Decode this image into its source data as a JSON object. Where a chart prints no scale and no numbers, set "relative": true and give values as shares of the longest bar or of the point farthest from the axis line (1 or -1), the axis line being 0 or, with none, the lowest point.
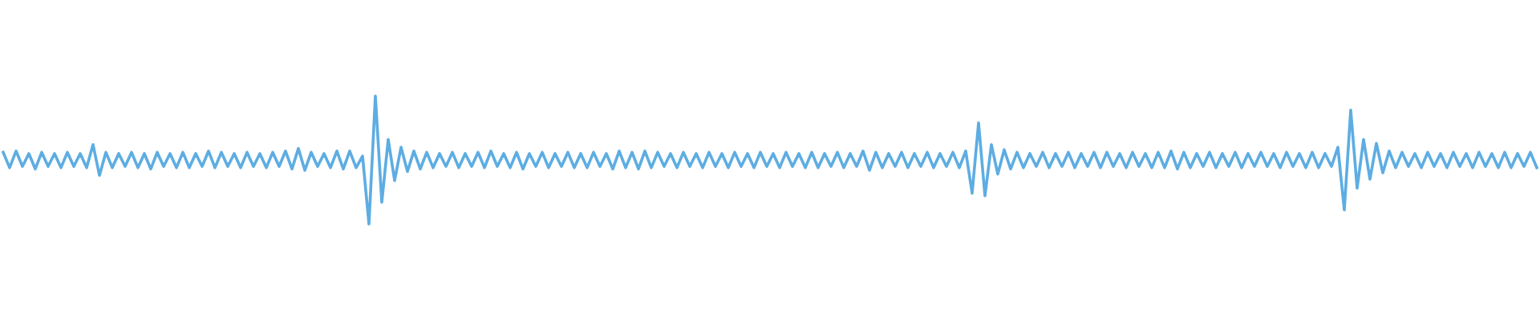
{
  "chart_data": {
    "type": "line",
    "relative": true,
    "categories": [
      null,
      null,
      null,
      null,
      null,
      null,
      null,
      null,
      null,
      null,
      null,
      null,
      null,
      null,
      null,
      null,
      null,
      null,
      null,
      null,
      null,
      null,
      null,
      null,
      null,
      null,
      null,
      null,
      null,
      null,
      null,
      null,
      null,
      null,
      null,
      null,
      null,
      null,
      null,
      null,
      null,
      null,
      null,
      null,
      null,
      null,
      null,
      null,
      null,
      null,
      null,
      null,
      null,
      null,
      null,
      null,
      null,
      null,
      null,
      null,
      null,
      null,
      null,
      null,
      null,
      null,
      null,
      null,
      null,
      null,
      null,
      null,
      null,
      null,
      null,
      null,
      null,
      null,
      null,
      null,
      null,
      null,
      null,
      null,
      null,
      null,
      null,
      null,
      null,
      null,
      null,
      null,
      null,
      null,
      null,
      null,
      null,
      null,
      null,
      null,
      null,
      null,
      null,
      null,
      null,
      null,
      null,
      null,
      null,
      null,
      null,
      null,
      null,
      null,
      null,
      null,
      null,
      null,
      null,
      null,
      null,
      null,
      null,
      null,
      null,
      null,
      null,
      null,
      null,
      null,
      null,
      null,
      null,
      null,
      null,
      null,
      null,
      null,
      null,
      null,
      null,
      null,
      null,
      null,
      null,
      null,
      null,
      null,
      null,
      null,
      null,
      null,
      null,
      null,
      null,
      null,
      null,
      null,
      null,
      null,
      null,
      null,
      null,
      null,
      null,
      null,
      null,
      null,
      null,
      null,
      null,
      null,
      null,
      null,
      null,
      null,
      null,
      null,
      null,
      null,
      null,
      null,
      null,
      null,
      null,
      null,
      null,
      null,
      null,
      null,
      null,
      null,
      null,
      null,
      null,
      null,
      null,
      null,
      null,
      null,
      null,
      null,
      null,
      null,
      null,
      null,
      null,
      null,
      null,
      null,
      null,
      null,
      null,
      null,
      null,
      null,
      null,
      null,
      null,
      null,
      null,
      null,
      null,
      null,
      null,
      null,
      null,
      null,
      null,
      null,
      null,
      null,
      null,
      null,
      null,
      null,
      null,
      null,
      null,
      null
    ],
    "values": [
      0.56,
      0.44,
      0.57,
      0.45,
      0.55,
      0.43,
      0.56,
      0.45,
      0.55,
      0.44,
      0.56,
      0.45,
      0.55,
      0.44,
      0.62,
      0.38,
      0.56,
      0.44,
      0.55,
      0.45,
      0.56,
      0.44,
      0.55,
      0.43,
      0.56,
      0.45,
      0.55,
      0.44,
      0.56,
      0.44,
      0.55,
      0.45,
      0.57,
      0.44,
      0.56,
      0.45,
      0.55,
      0.44,
      0.56,
      0.45,
      0.55,
      0.44,
      0.56,
      0.45,
      0.57,
      0.43,
      0.59,
      0.42,
      0.56,
      0.45,
      0.55,
      0.44,
      0.57,
      0.43,
      0.57,
      0.44,
      0.53,
      0.0,
      1.0,
      0.17,
      0.66,
      0.34,
      0.6,
      0.41,
      0.57,
      0.43,
      0.56,
      0.44,
      0.55,
      0.45,
      0.56,
      0.44,
      0.55,
      0.45,
      0.56,
      0.44,
      0.57,
      0.45,
      0.55,
      0.44,
      0.56,
      0.43,
      0.55,
      0.45,
      0.56,
      0.44,
      0.55,
      0.45,
      0.56,
      0.44,
      0.55,
      0.44,
      0.56,
      0.45,
      0.55,
      0.43,
      0.57,
      0.44,
      0.56,
      0.43,
      0.57,
      0.44,
      0.56,
      0.45,
      0.55,
      0.44,
      0.56,
      0.45,
      0.55,
      0.44,
      0.56,
      0.45,
      0.55,
      0.44,
      0.56,
      0.45,
      0.55,
      0.44,
      0.56,
      0.45,
      0.55,
      0.44,
      0.56,
      0.45,
      0.55,
      0.44,
      0.56,
      0.44,
      0.55,
      0.45,
      0.56,
      0.44,
      0.55,
      0.45,
      0.57,
      0.42,
      0.56,
      0.44,
      0.55,
      0.45,
      0.56,
      0.44,
      0.55,
      0.45,
      0.56,
      0.44,
      0.55,
      0.45,
      0.56,
      0.44,
      0.57,
      0.24,
      0.79,
      0.22,
      0.62,
      0.39,
      0.58,
      0.43,
      0.56,
      0.44,
      0.55,
      0.45,
      0.56,
      0.44,
      0.55,
      0.45,
      0.56,
      0.44,
      0.55,
      0.45,
      0.56,
      0.44,
      0.56,
      0.45,
      0.55,
      0.44,
      0.56,
      0.45,
      0.55,
      0.44,
      0.56,
      0.44,
      0.57,
      0.43,
      0.56,
      0.44,
      0.55,
      0.45,
      0.56,
      0.44,
      0.55,
      0.45,
      0.56,
      0.44,
      0.55,
      0.45,
      0.56,
      0.45,
      0.55,
      0.44,
      0.56,
      0.45,
      0.55,
      0.44,
      0.56,
      0.44,
      0.55,
      0.45,
      0.6,
      0.11,
      0.89,
      0.28,
      0.66,
      0.35,
      0.63,
      0.4,
      0.57,
      0.44,
      0.56,
      0.45,
      0.55,
      0.44,
      0.56,
      0.45,
      0.55,
      0.44,
      0.56,
      0.45,
      0.55,
      0.44,
      0.56,
      0.45,
      0.55,
      0.44,
      0.56,
      0.44,
      0.55,
      0.45,
      0.56,
      0.44
    ],
    "color": "#5dade2",
    "line_style": "solid"
  }
}
